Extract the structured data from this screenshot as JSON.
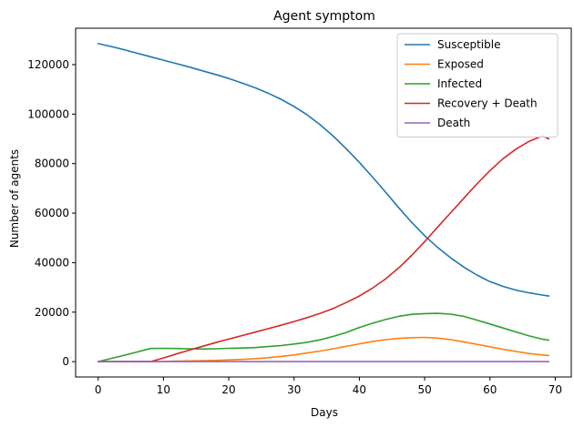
{
  "chart_data": {
    "type": "line",
    "title": "Agent symptom",
    "xlabel": "Days",
    "ylabel": "Number of agents",
    "xlim": [
      -3.45,
      72.45
    ],
    "ylim": [
      -6200,
      134700
    ],
    "xticks": [
      0,
      10,
      20,
      30,
      40,
      50,
      60,
      70
    ],
    "yticks": [
      0,
      20000,
      40000,
      60000,
      80000,
      100000,
      120000
    ],
    "grid": false,
    "legend_position": "top-right",
    "x": [
      0,
      2,
      4,
      6,
      8,
      10,
      12,
      14,
      16,
      18,
      20,
      22,
      24,
      26,
      28,
      30,
      32,
      34,
      36,
      38,
      40,
      42,
      44,
      46,
      48,
      50,
      52,
      54,
      56,
      58,
      60,
      62,
      64,
      66,
      68,
      69
    ],
    "series": [
      {
        "name": "Susceptible",
        "color": "#1f77b4",
        "values": [
          128500,
          127300,
          126000,
          124600,
          123200,
          121800,
          120400,
          119000,
          117500,
          116000,
          114400,
          112600,
          110700,
          108500,
          106000,
          103100,
          99700,
          95700,
          91100,
          86000,
          80500,
          74600,
          68500,
          62300,
          56300,
          50900,
          46100,
          41900,
          38200,
          35000,
          32300,
          30400,
          28900,
          27800,
          26900,
          26500
        ]
      },
      {
        "name": "Exposed",
        "color": "#ff7f0e",
        "values": [
          0,
          0,
          0,
          0,
          0,
          100,
          200,
          300,
          400,
          500,
          700,
          900,
          1200,
          1600,
          2100,
          2700,
          3500,
          4300,
          5200,
          6200,
          7200,
          8100,
          8900,
          9400,
          9700,
          9800,
          9500,
          8900,
          8000,
          7000,
          6000,
          5000,
          4100,
          3300,
          2700,
          2500
        ]
      },
      {
        "name": "Infected",
        "color": "#2ca02c",
        "values": [
          0,
          1300,
          2600,
          3900,
          5300,
          5400,
          5300,
          5200,
          5100,
          5200,
          5400,
          5500,
          5700,
          6100,
          6500,
          7100,
          7800,
          8800,
          10200,
          11800,
          13800,
          15500,
          17000,
          18300,
          19100,
          19400,
          19500,
          19200,
          18300,
          16800,
          15200,
          13600,
          12000,
          10400,
          9100,
          8700
        ]
      },
      {
        "name": "Recovery + Death",
        "color": "#d62728",
        "values": [
          0,
          0,
          0,
          0,
          0,
          1500,
          3100,
          4700,
          6200,
          7700,
          9100,
          10500,
          11900,
          13300,
          14700,
          16200,
          17800,
          19500,
          21500,
          23900,
          26500,
          29700,
          33400,
          37800,
          42900,
          48500,
          54400,
          60200,
          66000,
          71800,
          77200,
          82000,
          85900,
          89000,
          91200,
          90000
        ]
      },
      {
        "name": "Death",
        "color": "#9467bd",
        "values": [
          0,
          0,
          0,
          0,
          0,
          0,
          0,
          0,
          0,
          0,
          0,
          0,
          0,
          0,
          0,
          0,
          0,
          0,
          0,
          0,
          0,
          0,
          0,
          0,
          0,
          0,
          0,
          0,
          0,
          0,
          0,
          0,
          0,
          0,
          0,
          0
        ]
      }
    ]
  }
}
